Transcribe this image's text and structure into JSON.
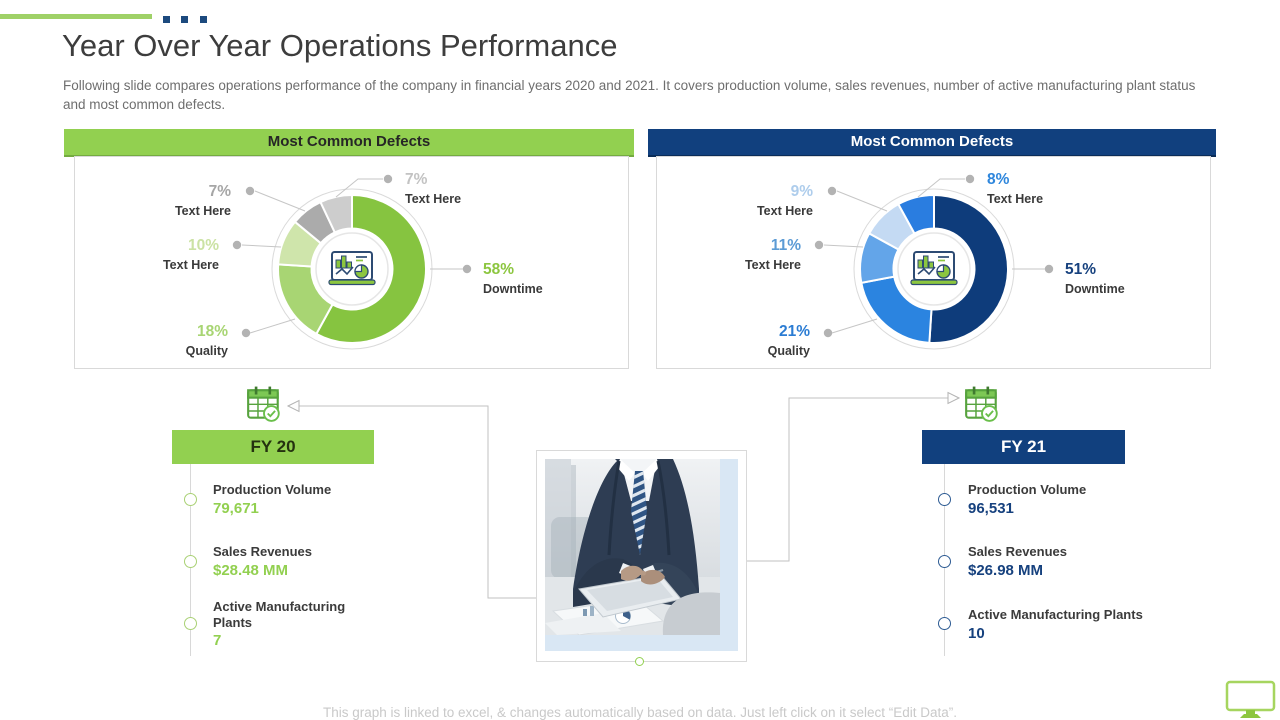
{
  "slide": {
    "title": "Year Over Year Operations Performance",
    "subtitle": "Following slide compares operations performance of the company in financial years 2020 and 2021. It covers production volume, sales revenues, number of active manufacturing plant status and most common defects.",
    "footnote": "This graph is linked to excel, & changes automatically based on data. Just left click on it select “Edit Data”."
  },
  "chart_data": [
    {
      "type": "pie",
      "variant": "donut",
      "title": "Most Common Defects",
      "period": "FY 20",
      "legend_position": "callouts",
      "accent_color": "#92d050",
      "center_icon": "dashboard-analytics-icon",
      "segments": [
        {
          "label": "Downtime",
          "value": 58,
          "color": "#86c440",
          "label_color": "#8cc63f"
        },
        {
          "label": "Quality",
          "value": 18,
          "color": "#a8d573",
          "label_color": "#a8d573"
        },
        {
          "label": "Text Here",
          "value": 10,
          "color": "#cfe5ab",
          "label_color": "#cbe2a4"
        },
        {
          "label": "Text Here",
          "value": 7,
          "color": "#ababab",
          "label_color": "#a6a6a6"
        },
        {
          "label": "Text Here",
          "value": 7,
          "color": "#cdcdcd",
          "label_color": "#c3c3c3"
        }
      ]
    },
    {
      "type": "pie",
      "variant": "donut",
      "title": "Most Common Defects",
      "period": "FY 21",
      "legend_position": "callouts",
      "accent_color": "#11407e",
      "center_icon": "dashboard-analytics-icon",
      "segments": [
        {
          "label": "Downtime",
          "value": 51,
          "color": "#0e3c7b",
          "label_color": "#16417e"
        },
        {
          "label": "Quality",
          "value": 21,
          "color": "#2b84e0",
          "label_color": "#2b7cd3"
        },
        {
          "label": "Text Here",
          "value": 11,
          "color": "#63a5e9",
          "label_color": "#5b9bd5"
        },
        {
          "label": "Text Here",
          "value": 9,
          "color": "#c4daf3",
          "label_color": "#aecdec"
        },
        {
          "label": "Text Here",
          "value": 8,
          "color": "#2a7de0",
          "label_color": "#2e86dc"
        }
      ]
    }
  ],
  "fy20": {
    "header": "FY 20",
    "items": [
      {
        "label": "Production Volume",
        "value": "79,671"
      },
      {
        "label": "Sales Revenues",
        "value": "$28.48 MM"
      },
      {
        "label": "Active Manufacturing Plants",
        "value": "7"
      }
    ]
  },
  "fy21": {
    "header": "FY 21",
    "items": [
      {
        "label": "Production Volume",
        "value": "96,531"
      },
      {
        "label": "Sales Revenues",
        "value": "$26.98 MM"
      },
      {
        "label": "Active Manufacturing Plants",
        "value": "10"
      }
    ]
  },
  "icons": {
    "center": "dashboard-analytics-icon",
    "calendar": "calendar-check-icon",
    "monitor": "monitor-icon"
  }
}
